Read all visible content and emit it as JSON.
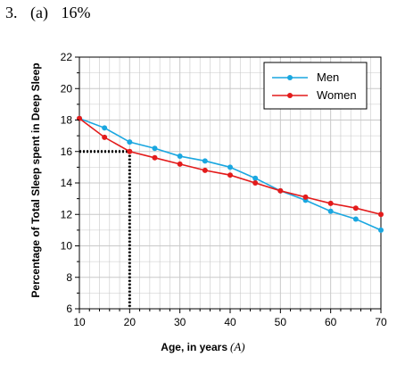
{
  "heading": {
    "number": "3.",
    "part": "(a)",
    "answer": "16%"
  },
  "colors": {
    "men": "#1aa7e0",
    "women": "#e31b1b",
    "grid": "#c8c8c8",
    "guide": "#000000"
  },
  "chart_data": {
    "type": "line",
    "title": "",
    "xlabel": "Age, in years",
    "xlabel_var": "(A)",
    "ylabel": "Percentage of Total Sleep spent in Deep Sleep",
    "xlim": [
      10,
      70
    ],
    "ylim": [
      6,
      22
    ],
    "x_ticks": [
      "10",
      "20",
      "30",
      "40",
      "50",
      "60",
      "70"
    ],
    "y_ticks": [
      "6",
      "8",
      "10",
      "12",
      "14",
      "16",
      "18",
      "20",
      "22"
    ],
    "grid": "on",
    "legend_position": "top-right",
    "x": [
      10,
      15,
      20,
      25,
      30,
      35,
      40,
      45,
      50,
      55,
      60,
      65,
      70
    ],
    "series": [
      {
        "name": "Men",
        "values": [
          18.1,
          17.5,
          16.6,
          16.2,
          15.7,
          15.4,
          15.0,
          14.3,
          13.5,
          12.9,
          12.2,
          11.7,
          11.0
        ]
      },
      {
        "name": "Women",
        "values": [
          18.1,
          16.9,
          16.0,
          15.6,
          15.2,
          14.8,
          14.5,
          14.0,
          13.5,
          13.1,
          12.7,
          12.4,
          12.0
        ]
      }
    ],
    "guide_point": {
      "x": 20,
      "y": 16
    }
  }
}
